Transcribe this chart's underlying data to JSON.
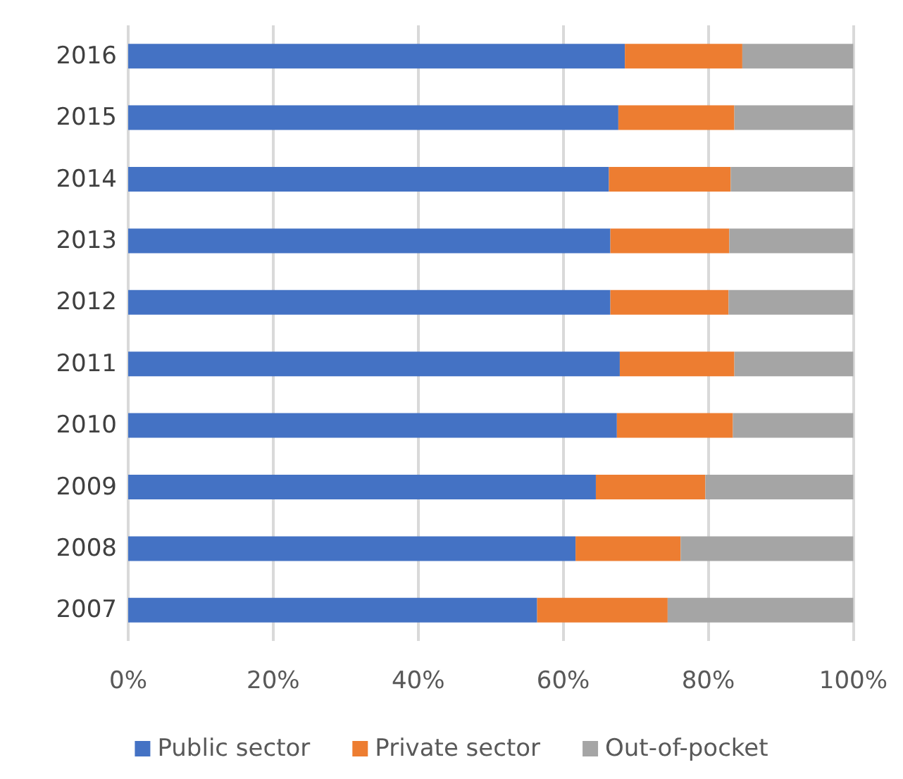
{
  "chart_data": {
    "type": "bar",
    "orientation": "horizontal",
    "stacked": true,
    "categories": [
      "2016",
      "2015",
      "2014",
      "2013",
      "2012",
      "2011",
      "2010",
      "2009",
      "2008",
      "2007"
    ],
    "series": [
      {
        "name": "Public sector",
        "color": "#4472c4",
        "values": [
          68.5,
          67.6,
          66.3,
          66.5,
          66.5,
          67.8,
          67.4,
          64.5,
          61.7,
          56.4
        ]
      },
      {
        "name": "Private sector",
        "color": "#ed7d31",
        "values": [
          16.2,
          16.0,
          16.8,
          16.4,
          16.3,
          15.8,
          16.0,
          15.1,
          14.5,
          18.0
        ]
      },
      {
        "name": "Out-of-pocket",
        "color": "#a5a5a5",
        "values": [
          15.3,
          16.4,
          16.9,
          17.1,
          17.2,
          16.4,
          16.6,
          20.4,
          23.8,
          25.6
        ]
      }
    ],
    "xlim": [
      0,
      100
    ],
    "xticks": [
      {
        "value": 0,
        "label": "0%"
      },
      {
        "value": 20,
        "label": "20%"
      },
      {
        "value": 40,
        "label": "40%"
      },
      {
        "value": 60,
        "label": "60%"
      },
      {
        "value": 80,
        "label": "80%"
      },
      {
        "value": 100,
        "label": "100%"
      }
    ],
    "grid": "x",
    "legend": "bottom"
  }
}
